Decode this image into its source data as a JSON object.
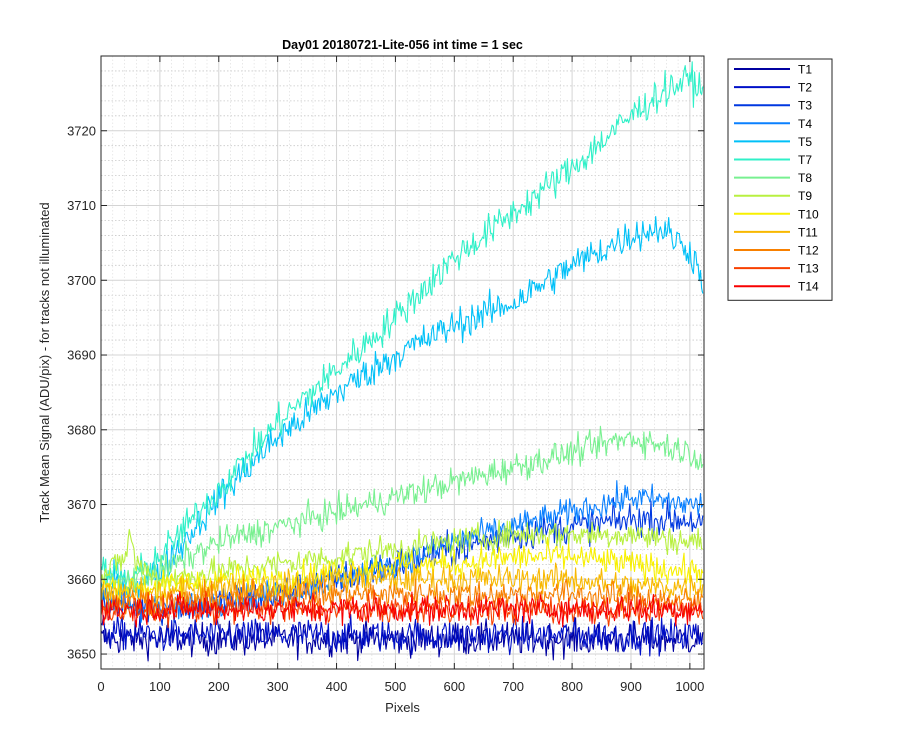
{
  "chart_data": {
    "type": "line",
    "title": "Day01 20180721-Lite-056 int time = 1 sec",
    "xlabel": "Pixels",
    "ylabel": "Track Mean Signal (ADU/pix) - for tracks not illuminated",
    "xlim": [
      0,
      1024
    ],
    "ylim": [
      3648,
      3730
    ],
    "xticks": [
      0,
      100,
      200,
      300,
      400,
      500,
      600,
      700,
      800,
      900,
      1000
    ],
    "yticks": [
      3650,
      3660,
      3670,
      3680,
      3690,
      3700,
      3710,
      3720
    ],
    "grid": "major and minor",
    "legend_position": "outside-top-right",
    "series": [
      {
        "name": "T1",
        "color": "#0000a0",
        "noise": 3.5,
        "x": [
          0,
          100,
          200,
          300,
          400,
          500,
          600,
          700,
          800,
          900,
          1000,
          1023
        ],
        "y": [
          3652,
          3652,
          3652,
          3652,
          3652,
          3652,
          3652,
          3652,
          3652,
          3652,
          3652,
          3652
        ]
      },
      {
        "name": "T2",
        "color": "#0010c8",
        "noise": 3.5,
        "x": [
          0,
          100,
          200,
          300,
          400,
          500,
          600,
          700,
          800,
          900,
          1000,
          1023
        ],
        "y": [
          3653,
          3652.5,
          3652.5,
          3652.5,
          3652.5,
          3652.5,
          3652.5,
          3652.5,
          3652.5,
          3652.5,
          3652.5,
          3652.5
        ]
      },
      {
        "name": "T3",
        "color": "#0038e0",
        "noise": 3.5,
        "x": [
          0,
          100,
          200,
          300,
          400,
          500,
          600,
          700,
          800,
          900,
          1000,
          1023
        ],
        "y": [
          3657,
          3656,
          3657,
          3658,
          3660,
          3662,
          3664,
          3666,
          3667,
          3668,
          3668,
          3667
        ]
      },
      {
        "name": "T4",
        "color": "#0a80ff",
        "noise": 3,
        "x": [
          0,
          100,
          200,
          300,
          400,
          500,
          600,
          700,
          800,
          900,
          1000,
          1023
        ],
        "y": [
          3657,
          3656,
          3657,
          3658,
          3660,
          3662,
          3665,
          3667,
          3669,
          3671,
          3670,
          3670
        ]
      },
      {
        "name": "T5",
        "color": "#00c0f8",
        "noise": 3.5,
        "x": [
          0,
          50,
          100,
          200,
          300,
          400,
          500,
          600,
          700,
          800,
          900,
          950,
          1000,
          1023
        ],
        "y": [
          3660,
          3659,
          3661,
          3671,
          3679,
          3685,
          3690,
          3694,
          3697,
          3702,
          3706,
          3707,
          3704,
          3700
        ]
      },
      {
        "name": "T7",
        "color": "#30f0c8",
        "noise": 3.5,
        "x": [
          0,
          50,
          100,
          200,
          300,
          400,
          500,
          600,
          700,
          800,
          900,
          950,
          1000,
          1023
        ],
        "y": [
          3661,
          3660,
          3663,
          3672,
          3681,
          3688,
          3695,
          3703,
          3709,
          3715,
          3722,
          3725,
          3727,
          3725
        ]
      },
      {
        "name": "T8",
        "color": "#78f090",
        "noise": 3,
        "x": [
          0,
          100,
          200,
          300,
          400,
          500,
          600,
          700,
          800,
          900,
          1000,
          1023
        ],
        "y": [
          3659,
          3661,
          3665,
          3667,
          3669,
          3671,
          3673,
          3675,
          3677,
          3679,
          3677,
          3676
        ]
      },
      {
        "name": "T9",
        "color": "#b8f040",
        "noise": 3,
        "x": [
          0,
          40,
          50,
          60,
          100,
          200,
          300,
          400,
          500,
          600,
          700,
          800,
          900,
          1000,
          1023
        ],
        "y": [
          3660,
          3663,
          3666,
          3662,
          3660,
          3661,
          3662,
          3663,
          3664,
          3665,
          3666,
          3666,
          3666,
          3665,
          3665
        ]
      },
      {
        "name": "T10",
        "color": "#f8f000",
        "noise": 3,
        "x": [
          0,
          100,
          200,
          300,
          400,
          500,
          600,
          700,
          800,
          900,
          1000,
          1023
        ],
        "y": [
          3659,
          3659,
          3660,
          3660,
          3661,
          3662,
          3662,
          3663,
          3663,
          3662,
          3661,
          3661
        ]
      },
      {
        "name": "T11",
        "color": "#f8b800",
        "noise": 3,
        "x": [
          0,
          100,
          200,
          300,
          400,
          500,
          600,
          700,
          800,
          900,
          1000,
          1023
        ],
        "y": [
          3658,
          3658,
          3659,
          3659,
          3660,
          3660,
          3660,
          3660,
          3660,
          3659,
          3659,
          3659
        ]
      },
      {
        "name": "T12",
        "color": "#f88000",
        "noise": 3,
        "x": [
          0,
          100,
          200,
          300,
          400,
          500,
          600,
          700,
          800,
          900,
          1000,
          1023
        ],
        "y": [
          3657,
          3657,
          3657.5,
          3658,
          3658,
          3658,
          3658,
          3658,
          3658,
          3657.5,
          3657,
          3657
        ]
      },
      {
        "name": "T13",
        "color": "#f84000",
        "noise": 3,
        "x": [
          0,
          100,
          200,
          300,
          400,
          500,
          600,
          700,
          800,
          900,
          1000,
          1023
        ],
        "y": [
          3656,
          3656,
          3656,
          3656,
          3656,
          3656,
          3656,
          3656,
          3656,
          3656,
          3656,
          3656
        ]
      },
      {
        "name": "T14",
        "color": "#f80000",
        "noise": 3,
        "x": [
          0,
          100,
          200,
          300,
          400,
          500,
          600,
          700,
          800,
          900,
          1000,
          1023
        ],
        "y": [
          3656,
          3656,
          3656,
          3656,
          3656,
          3656,
          3656,
          3656,
          3656,
          3656,
          3656,
          3656
        ]
      }
    ]
  }
}
